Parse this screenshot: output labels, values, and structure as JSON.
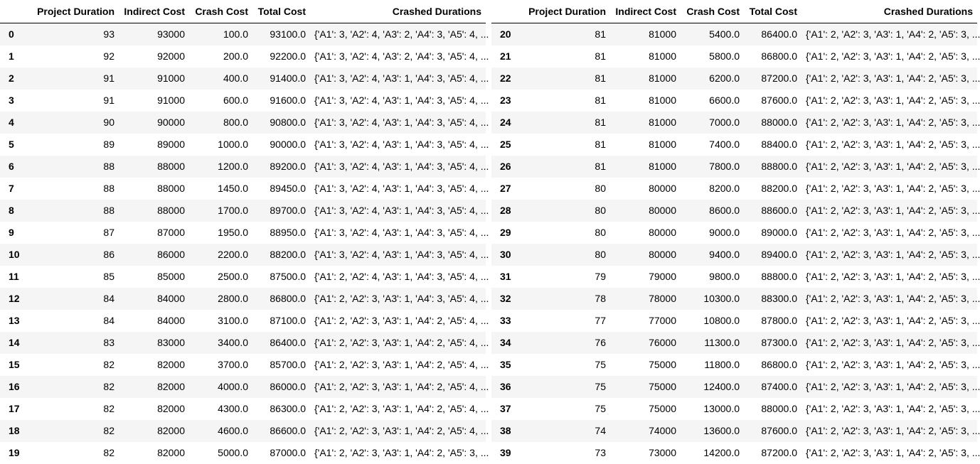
{
  "columns": {
    "index": "",
    "project_duration": "Project Duration",
    "indirect_cost": "Indirect Cost",
    "crash_cost": "Crash Cost",
    "total_cost": "Total Cost",
    "crashed_durations": "Crashed Durations"
  },
  "left_rows": [
    {
      "idx": "0",
      "pd": "93",
      "ic": "93000",
      "cc": "100.0",
      "tc": "93100.0",
      "cd": "{'A1': 3, 'A2': 4, 'A3': 2, 'A4': 3, 'A5': 4, ..."
    },
    {
      "idx": "1",
      "pd": "92",
      "ic": "92000",
      "cc": "200.0",
      "tc": "92200.0",
      "cd": "{'A1': 3, 'A2': 4, 'A3': 2, 'A4': 3, 'A5': 4, ..."
    },
    {
      "idx": "2",
      "pd": "91",
      "ic": "91000",
      "cc": "400.0",
      "tc": "91400.0",
      "cd": "{'A1': 3, 'A2': 4, 'A3': 1, 'A4': 3, 'A5': 4, ..."
    },
    {
      "idx": "3",
      "pd": "91",
      "ic": "91000",
      "cc": "600.0",
      "tc": "91600.0",
      "cd": "{'A1': 3, 'A2': 4, 'A3': 1, 'A4': 3, 'A5': 4, ..."
    },
    {
      "idx": "4",
      "pd": "90",
      "ic": "90000",
      "cc": "800.0",
      "tc": "90800.0",
      "cd": "{'A1': 3, 'A2': 4, 'A3': 1, 'A4': 3, 'A5': 4, ..."
    },
    {
      "idx": "5",
      "pd": "89",
      "ic": "89000",
      "cc": "1000.0",
      "tc": "90000.0",
      "cd": "{'A1': 3, 'A2': 4, 'A3': 1, 'A4': 3, 'A5': 4, ..."
    },
    {
      "idx": "6",
      "pd": "88",
      "ic": "88000",
      "cc": "1200.0",
      "tc": "89200.0",
      "cd": "{'A1': 3, 'A2': 4, 'A3': 1, 'A4': 3, 'A5': 4, ..."
    },
    {
      "idx": "7",
      "pd": "88",
      "ic": "88000",
      "cc": "1450.0",
      "tc": "89450.0",
      "cd": "{'A1': 3, 'A2': 4, 'A3': 1, 'A4': 3, 'A5': 4, ..."
    },
    {
      "idx": "8",
      "pd": "88",
      "ic": "88000",
      "cc": "1700.0",
      "tc": "89700.0",
      "cd": "{'A1': 3, 'A2': 4, 'A3': 1, 'A4': 3, 'A5': 4, ..."
    },
    {
      "idx": "9",
      "pd": "87",
      "ic": "87000",
      "cc": "1950.0",
      "tc": "88950.0",
      "cd": "{'A1': 3, 'A2': 4, 'A3': 1, 'A4': 3, 'A5': 4, ..."
    },
    {
      "idx": "10",
      "pd": "86",
      "ic": "86000",
      "cc": "2200.0",
      "tc": "88200.0",
      "cd": "{'A1': 3, 'A2': 4, 'A3': 1, 'A4': 3, 'A5': 4, ..."
    },
    {
      "idx": "11",
      "pd": "85",
      "ic": "85000",
      "cc": "2500.0",
      "tc": "87500.0",
      "cd": "{'A1': 2, 'A2': 4, 'A3': 1, 'A4': 3, 'A5': 4, ..."
    },
    {
      "idx": "12",
      "pd": "84",
      "ic": "84000",
      "cc": "2800.0",
      "tc": "86800.0",
      "cd": "{'A1': 2, 'A2': 3, 'A3': 1, 'A4': 3, 'A5': 4, ..."
    },
    {
      "idx": "13",
      "pd": "84",
      "ic": "84000",
      "cc": "3100.0",
      "tc": "87100.0",
      "cd": "{'A1': 2, 'A2': 3, 'A3': 1, 'A4': 2, 'A5': 4, ..."
    },
    {
      "idx": "14",
      "pd": "83",
      "ic": "83000",
      "cc": "3400.0",
      "tc": "86400.0",
      "cd": "{'A1': 2, 'A2': 3, 'A3': 1, 'A4': 2, 'A5': 4, ..."
    },
    {
      "idx": "15",
      "pd": "82",
      "ic": "82000",
      "cc": "3700.0",
      "tc": "85700.0",
      "cd": "{'A1': 2, 'A2': 3, 'A3': 1, 'A4': 2, 'A5': 4, ..."
    },
    {
      "idx": "16",
      "pd": "82",
      "ic": "82000",
      "cc": "4000.0",
      "tc": "86000.0",
      "cd": "{'A1': 2, 'A2': 3, 'A3': 1, 'A4': 2, 'A5': 4, ..."
    },
    {
      "idx": "17",
      "pd": "82",
      "ic": "82000",
      "cc": "4300.0",
      "tc": "86300.0",
      "cd": "{'A1': 2, 'A2': 3, 'A3': 1, 'A4': 2, 'A5': 4, ..."
    },
    {
      "idx": "18",
      "pd": "82",
      "ic": "82000",
      "cc": "4600.0",
      "tc": "86600.0",
      "cd": "{'A1': 2, 'A2': 3, 'A3': 1, 'A4': 2, 'A5': 4, ..."
    },
    {
      "idx": "19",
      "pd": "82",
      "ic": "82000",
      "cc": "5000.0",
      "tc": "87000.0",
      "cd": "{'A1': 2, 'A2': 3, 'A3': 1, 'A4': 2, 'A5': 3, ..."
    }
  ],
  "right_rows": [
    {
      "idx": "20",
      "pd": "81",
      "ic": "81000",
      "cc": "5400.0",
      "tc": "86400.0",
      "cd": "{'A1': 2, 'A2': 3, 'A3': 1, 'A4': 2, 'A5': 3, ..."
    },
    {
      "idx": "21",
      "pd": "81",
      "ic": "81000",
      "cc": "5800.0",
      "tc": "86800.0",
      "cd": "{'A1': 2, 'A2': 3, 'A3': 1, 'A4': 2, 'A5': 3, ..."
    },
    {
      "idx": "22",
      "pd": "81",
      "ic": "81000",
      "cc": "6200.0",
      "tc": "87200.0",
      "cd": "{'A1': 2, 'A2': 3, 'A3': 1, 'A4': 2, 'A5': 3, ..."
    },
    {
      "idx": "23",
      "pd": "81",
      "ic": "81000",
      "cc": "6600.0",
      "tc": "87600.0",
      "cd": "{'A1': 2, 'A2': 3, 'A3': 1, 'A4': 2, 'A5': 3, ..."
    },
    {
      "idx": "24",
      "pd": "81",
      "ic": "81000",
      "cc": "7000.0",
      "tc": "88000.0",
      "cd": "{'A1': 2, 'A2': 3, 'A3': 1, 'A4': 2, 'A5': 3, ..."
    },
    {
      "idx": "25",
      "pd": "81",
      "ic": "81000",
      "cc": "7400.0",
      "tc": "88400.0",
      "cd": "{'A1': 2, 'A2': 3, 'A3': 1, 'A4': 2, 'A5': 3, ..."
    },
    {
      "idx": "26",
      "pd": "81",
      "ic": "81000",
      "cc": "7800.0",
      "tc": "88800.0",
      "cd": "{'A1': 2, 'A2': 3, 'A3': 1, 'A4': 2, 'A5': 3, ..."
    },
    {
      "idx": "27",
      "pd": "80",
      "ic": "80000",
      "cc": "8200.0",
      "tc": "88200.0",
      "cd": "{'A1': 2, 'A2': 3, 'A3': 1, 'A4': 2, 'A5': 3, ..."
    },
    {
      "idx": "28",
      "pd": "80",
      "ic": "80000",
      "cc": "8600.0",
      "tc": "88600.0",
      "cd": "{'A1': 2, 'A2': 3, 'A3': 1, 'A4': 2, 'A5': 3, ..."
    },
    {
      "idx": "29",
      "pd": "80",
      "ic": "80000",
      "cc": "9000.0",
      "tc": "89000.0",
      "cd": "{'A1': 2, 'A2': 3, 'A3': 1, 'A4': 2, 'A5': 3, ..."
    },
    {
      "idx": "30",
      "pd": "80",
      "ic": "80000",
      "cc": "9400.0",
      "tc": "89400.0",
      "cd": "{'A1': 2, 'A2': 3, 'A3': 1, 'A4': 2, 'A5': 3, ..."
    },
    {
      "idx": "31",
      "pd": "79",
      "ic": "79000",
      "cc": "9800.0",
      "tc": "88800.0",
      "cd": "{'A1': 2, 'A2': 3, 'A3': 1, 'A4': 2, 'A5': 3, ..."
    },
    {
      "idx": "32",
      "pd": "78",
      "ic": "78000",
      "cc": "10300.0",
      "tc": "88300.0",
      "cd": "{'A1': 2, 'A2': 3, 'A3': 1, 'A4': 2, 'A5': 3, ..."
    },
    {
      "idx": "33",
      "pd": "77",
      "ic": "77000",
      "cc": "10800.0",
      "tc": "87800.0",
      "cd": "{'A1': 2, 'A2': 3, 'A3': 1, 'A4': 2, 'A5': 3, ..."
    },
    {
      "idx": "34",
      "pd": "76",
      "ic": "76000",
      "cc": "11300.0",
      "tc": "87300.0",
      "cd": "{'A1': 2, 'A2': 3, 'A3': 1, 'A4': 2, 'A5': 3, ..."
    },
    {
      "idx": "35",
      "pd": "75",
      "ic": "75000",
      "cc": "11800.0",
      "tc": "86800.0",
      "cd": "{'A1': 2, 'A2': 3, 'A3': 1, 'A4': 2, 'A5': 3, ..."
    },
    {
      "idx": "36",
      "pd": "75",
      "ic": "75000",
      "cc": "12400.0",
      "tc": "87400.0",
      "cd": "{'A1': 2, 'A2': 3, 'A3': 1, 'A4': 2, 'A5': 3, ..."
    },
    {
      "idx": "37",
      "pd": "75",
      "ic": "75000",
      "cc": "13000.0",
      "tc": "88000.0",
      "cd": "{'A1': 2, 'A2': 3, 'A3': 1, 'A4': 2, 'A5': 3, ..."
    },
    {
      "idx": "38",
      "pd": "74",
      "ic": "74000",
      "cc": "13600.0",
      "tc": "87600.0",
      "cd": "{'A1': 2, 'A2': 3, 'A3': 1, 'A4': 2, 'A5': 3, ..."
    },
    {
      "idx": "39",
      "pd": "73",
      "ic": "73000",
      "cc": "14200.0",
      "tc": "87200.0",
      "cd": "{'A1': 2, 'A2': 3, 'A3': 1, 'A4': 2, 'A5': 3, ..."
    }
  ]
}
